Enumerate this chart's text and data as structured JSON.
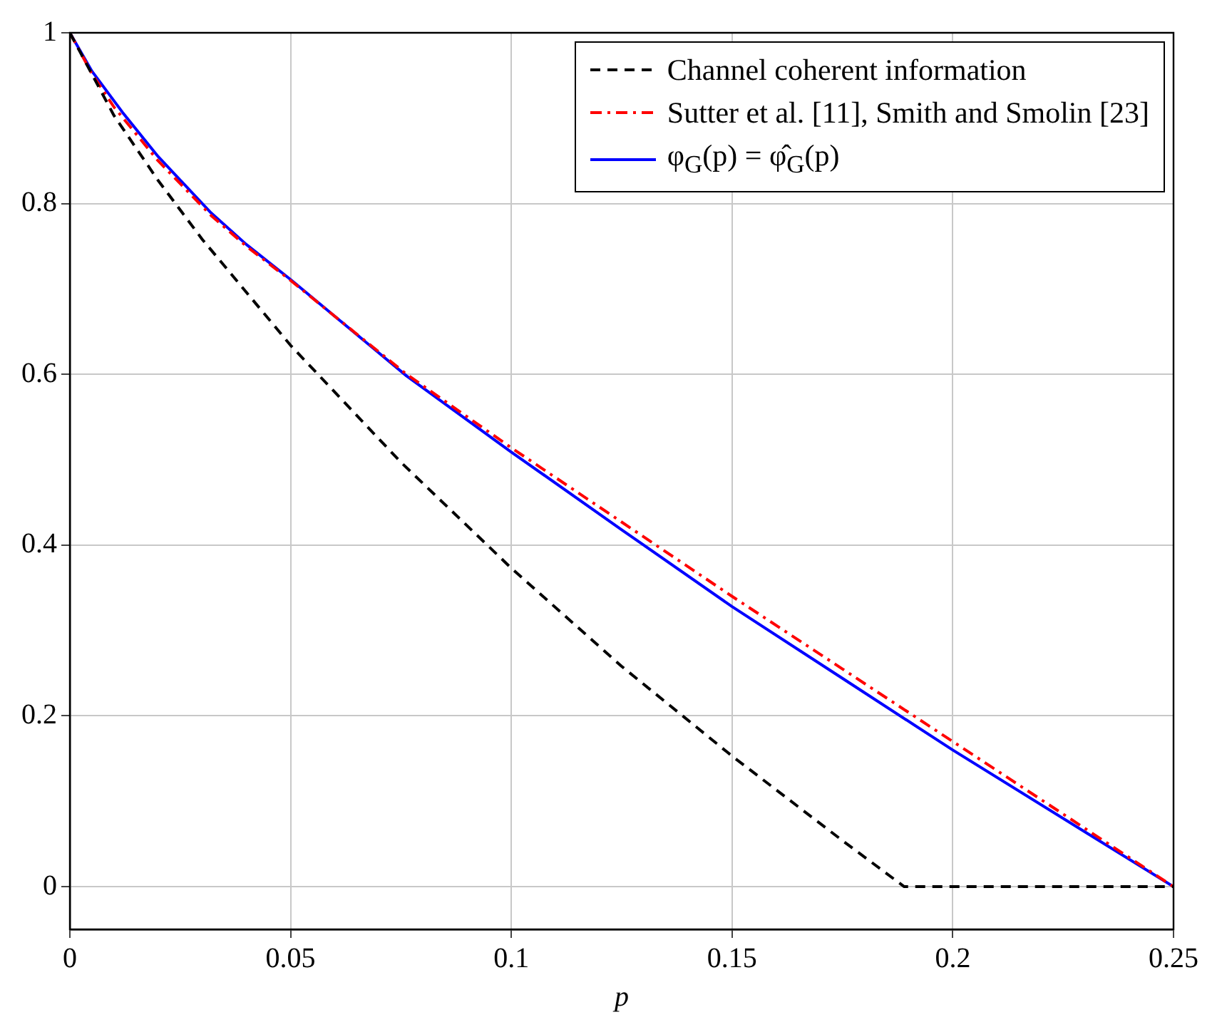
{
  "chart_data": {
    "type": "line",
    "xlabel": "p",
    "xlim": [
      0,
      0.25
    ],
    "xticks": [
      0,
      0.05,
      0.1,
      0.15,
      0.2,
      0.25
    ],
    "ylim": [
      -0.05,
      1
    ],
    "yticks": [
      0,
      0.2,
      0.4,
      0.6,
      0.8,
      1
    ],
    "grid": true,
    "legend": "top right",
    "marker": "none",
    "series": [
      {
        "name": "Channel coherent information",
        "color": "#000000",
        "line_style": "dashed",
        "x": [
          0,
          0.01,
          0.02,
          0.03,
          0.05,
          0.075,
          0.1,
          0.125,
          0.15,
          0.175,
          0.189,
          0.25
        ],
        "values": [
          1,
          0.903,
          0.827,
          0.758,
          0.634,
          0.497,
          0.373,
          0.258,
          0.153,
          0.054,
          0,
          0
        ]
      },
      {
        "name": "Sutter et al. [11], Smith and Smolin [23]",
        "color": "#ff0000",
        "line_style": "dashdot",
        "x": [
          0,
          0.005,
          0.01,
          0.02,
          0.032,
          0.04,
          0.05,
          0.06,
          0.0763,
          0.1,
          0.125,
          0.15,
          0.175,
          0.2,
          0.225,
          0.25
        ],
        "values": [
          1,
          0.952,
          0.913,
          0.85,
          0.786,
          0.75,
          0.71,
          0.668,
          0.6,
          0.514,
          0.427,
          0.34,
          0.255,
          0.17,
          0.085,
          0
        ]
      },
      {
        "name": "φ$_{G}$(p) = φ̂$_{G}$(p)",
        "color": "#0000ff",
        "line_style": "solid",
        "x": [
          0,
          0.005,
          0.0119,
          0.02,
          0.032,
          0.04,
          0.05,
          0.06,
          0.0763,
          0.1,
          0.125,
          0.15,
          0.175,
          0.2,
          0.25
        ],
        "values": [
          1,
          0.955,
          0.907,
          0.855,
          0.789,
          0.752,
          0.711,
          0.668,
          0.598,
          0.509,
          0.418,
          0.328,
          0.244,
          0.16,
          0
        ]
      }
    ]
  }
}
